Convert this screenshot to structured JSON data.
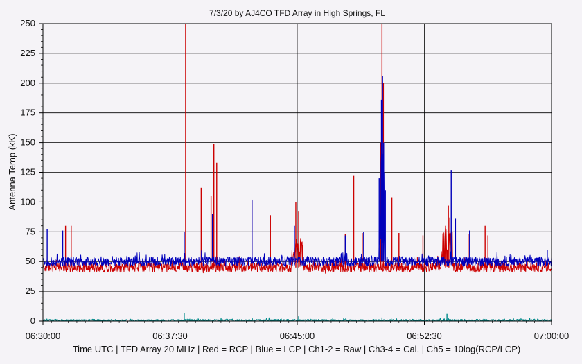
{
  "chart_data": {
    "type": "line",
    "title": "7/3/20  by  AJ4CO TFD Array  in  High Springs, FL",
    "ylabel": "Antenna Temp (kK)",
    "xlabel": "Time UTC | TFD Array 20 MHz | Red = RCP | Blue = LCP | Ch1-2 = Raw | Ch3-4 = Cal. | Ch5 = 10log(RCP/LCP)",
    "ylim": [
      0,
      250
    ],
    "xlim": [
      "06:30:00",
      "07:00:00"
    ],
    "grid": true,
    "y_ticks": [
      "0",
      "25",
      "50",
      "75",
      "100",
      "125",
      "150",
      "175",
      "200",
      "225",
      "250"
    ],
    "x_ticks": [
      "06:30:00",
      "06:37:30",
      "06:45:00",
      "06:52:30",
      "07:00:00"
    ],
    "colors": {
      "rcp": "#cc0000",
      "lcp": "#0000bb",
      "ratio": "#008a8a",
      "plot_bg": "#f5f3f7",
      "grid": "#000000"
    },
    "series": [
      {
        "key": "rcp",
        "baseline": 45,
        "noise": 4,
        "spikes": [
          {
            "x": "06:31:20",
            "value": 80
          },
          {
            "x": "06:31:40",
            "value": 80
          },
          {
            "x": "06:38:25",
            "value": 250
          },
          {
            "x": "06:39:20",
            "value": 112
          },
          {
            "x": "06:39:55",
            "value": 105
          },
          {
            "x": "06:40:05",
            "value": 149
          },
          {
            "x": "06:40:15",
            "value": 133
          },
          {
            "x": "06:42:20",
            "value": 101
          },
          {
            "x": "06:43:25",
            "value": 89
          },
          {
            "x": "06:44:55",
            "value": 100
          },
          {
            "x": "06:45:05",
            "value": 92
          },
          {
            "x": "06:47:50",
            "value": 73
          },
          {
            "x": "06:48:20",
            "value": 122
          },
          {
            "x": "06:48:50",
            "value": 74
          },
          {
            "x": "06:49:55",
            "value": 150
          },
          {
            "x": "06:50:00",
            "value": 250
          },
          {
            "x": "06:50:05",
            "value": 200
          },
          {
            "x": "06:50:35",
            "value": 104
          },
          {
            "x": "06:51:00",
            "value": 74
          },
          {
            "x": "06:52:25",
            "value": 72
          },
          {
            "x": "06:53:45",
            "value": 80
          },
          {
            "x": "06:53:55",
            "value": 97
          },
          {
            "x": "06:54:00",
            "value": 87
          },
          {
            "x": "06:55:05",
            "value": 73
          },
          {
            "x": "06:56:05",
            "value": 80
          },
          {
            "x": "06:56:15",
            "value": 72
          }
        ],
        "bursts": [
          {
            "x": "06:45:00",
            "width_s": 40,
            "value": 70
          },
          {
            "x": "06:53:50",
            "width_s": 40,
            "value": 78
          }
        ]
      },
      {
        "key": "lcp",
        "baseline": 50,
        "noise": 4,
        "spikes": [
          {
            "x": "06:30:15",
            "value": 77
          },
          {
            "x": "06:31:10",
            "value": 76
          },
          {
            "x": "06:38:20",
            "value": 75
          },
          {
            "x": "06:40:00",
            "value": 90
          },
          {
            "x": "06:42:20",
            "value": 102
          },
          {
            "x": "06:44:50",
            "value": 80
          },
          {
            "x": "06:47:50",
            "value": 72
          },
          {
            "x": "06:48:55",
            "value": 75
          },
          {
            "x": "06:49:50",
            "value": 120
          },
          {
            "x": "06:49:58",
            "value": 186
          },
          {
            "x": "06:50:02",
            "value": 206
          },
          {
            "x": "06:50:06",
            "value": 150
          },
          {
            "x": "06:50:12",
            "value": 110
          },
          {
            "x": "06:54:05",
            "value": 127
          },
          {
            "x": "06:54:20",
            "value": 86
          },
          {
            "x": "06:55:10",
            "value": 76
          },
          {
            "x": "06:59:45",
            "value": 60
          }
        ],
        "bursts": [
          {
            "x": "06:50:00",
            "width_s": 20,
            "value": 150
          }
        ]
      },
      {
        "key": "ratio",
        "baseline": 0.5,
        "noise": 1,
        "spikes": [
          {
            "x": "06:38:20",
            "value": 7
          },
          {
            "x": "06:45:05",
            "value": 4
          },
          {
            "x": "06:50:00",
            "value": 3
          },
          {
            "x": "06:53:50",
            "value": 6
          }
        ],
        "bursts": []
      }
    ]
  }
}
